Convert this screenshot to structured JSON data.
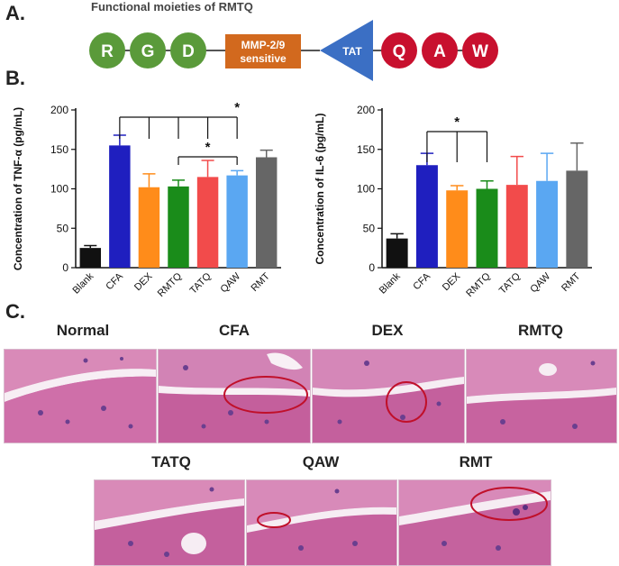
{
  "panels": {
    "a": {
      "letter": "A.",
      "title": "Functional moieties of RMTQ",
      "left_residues": [
        "R",
        "G",
        "D"
      ],
      "linker_label_line1": "MMP-2/9",
      "linker_label_line2": "sensitive",
      "tat_label": "TAT",
      "right_residues": [
        "Q",
        "A",
        "W"
      ],
      "colors": {
        "green": "#5a9a3a",
        "orange": "#d2691e",
        "blue": "#3b6fc4",
        "red": "#c8102e"
      }
    },
    "b": {
      "letter": "B."
    },
    "c": {
      "letter": "C.",
      "row1_labels": [
        "Normal",
        "CFA",
        "DEX",
        "RMTQ"
      ],
      "row2_labels": [
        "TATQ",
        "QAW",
        "RMT"
      ]
    }
  },
  "chart_data": [
    {
      "type": "bar",
      "ylabel": "Concentration of TNF-α (pg/mL)",
      "ylim": [
        0,
        200
      ],
      "yticks": [
        0,
        50,
        100,
        150,
        200
      ],
      "categories": [
        "Blank",
        "CFA",
        "DEX",
        "RMTQ",
        "TATQ",
        "QAW",
        "RMT"
      ],
      "values": [
        25,
        155,
        102,
        103,
        115,
        117,
        140
      ],
      "errors": [
        3,
        13,
        17,
        8,
        21,
        6,
        9
      ],
      "colors": [
        "#111111",
        "#1f1fbf",
        "#ff8c1a",
        "#1a8c1a",
        "#f24b4b",
        "#5aa7f2",
        "#666666"
      ],
      "sig_marker": "*",
      "grid": false
    },
    {
      "type": "bar",
      "ylabel": "Concentration of IL-6 (pg/mL)",
      "ylim": [
        0,
        200
      ],
      "yticks": [
        0,
        50,
        100,
        150,
        200
      ],
      "categories": [
        "Blank",
        "CFA",
        "DEX",
        "RMTQ",
        "TATQ",
        "QAW",
        "RMT"
      ],
      "values": [
        37,
        130,
        98,
        100,
        105,
        110,
        123
      ],
      "errors": [
        6,
        15,
        6,
        10,
        36,
        35,
        35
      ],
      "colors": [
        "#111111",
        "#1f1fbf",
        "#ff8c1a",
        "#1a8c1a",
        "#f24b4b",
        "#5aa7f2",
        "#666666"
      ],
      "sig_marker": "*",
      "grid": false
    }
  ]
}
